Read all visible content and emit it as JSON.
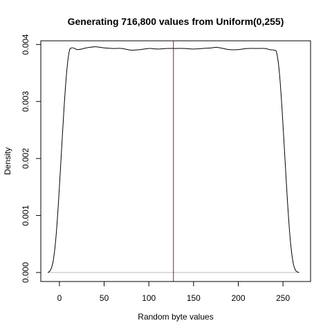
{
  "chart_data": {
    "type": "line",
    "title": "Generating 716,800 values from Uniform(0,255)",
    "xlabel": "Random byte values",
    "ylabel": "Density",
    "xlim": [
      -10,
      270
    ],
    "ylim": [
      0,
      0.00404
    ],
    "x_ticks": [
      0,
      50,
      100,
      150,
      200,
      250
    ],
    "x_tick_labels": [
      "0",
      "50",
      "100",
      "150",
      "200",
      "250"
    ],
    "y_ticks": [
      0,
      0.001,
      0.002,
      0.003,
      0.004
    ],
    "y_tick_labels": [
      "0.000",
      "0.001",
      "0.002",
      "0.003",
      "0.004"
    ],
    "grid": false,
    "legend": "none",
    "series": [
      {
        "x": [
          -13,
          -10,
          -7,
          -4,
          -1,
          2,
          5,
          8,
          11,
          14,
          17,
          20,
          25,
          30,
          40,
          50,
          60,
          70,
          80,
          90,
          100,
          110,
          120,
          130,
          140,
          150,
          160,
          170,
          175,
          180,
          190,
          200,
          210,
          220,
          230,
          235,
          240,
          243,
          246,
          249,
          252,
          255,
          258,
          261,
          264,
          268
        ],
        "y": [
          0.0,
          4e-05,
          0.0002,
          0.0006,
          0.00125,
          0.00205,
          0.00285,
          0.0035,
          0.00388,
          0.00394,
          0.00393,
          0.00391,
          0.00392,
          0.00394,
          0.00396,
          0.00394,
          0.00393,
          0.00393,
          0.0039,
          0.00391,
          0.00393,
          0.00392,
          0.00393,
          0.00393,
          0.00393,
          0.00392,
          0.00393,
          0.00394,
          0.00395,
          0.00394,
          0.00391,
          0.00391,
          0.00393,
          0.00393,
          0.00393,
          0.00391,
          0.0039,
          0.00385,
          0.0035,
          0.00285,
          0.00205,
          0.00125,
          0.0006,
          0.0002,
          4e-05,
          0.0
        ]
      }
    ],
    "reference_lines": [
      {
        "orientation": "vertical",
        "x": 127.5,
        "color": "#8b1a1a"
      }
    ],
    "colors": {
      "curve": "#000000",
      "reference": "#8b1a1a",
      "zero_line": "#bbbbbb",
      "frame": "#000000"
    }
  }
}
